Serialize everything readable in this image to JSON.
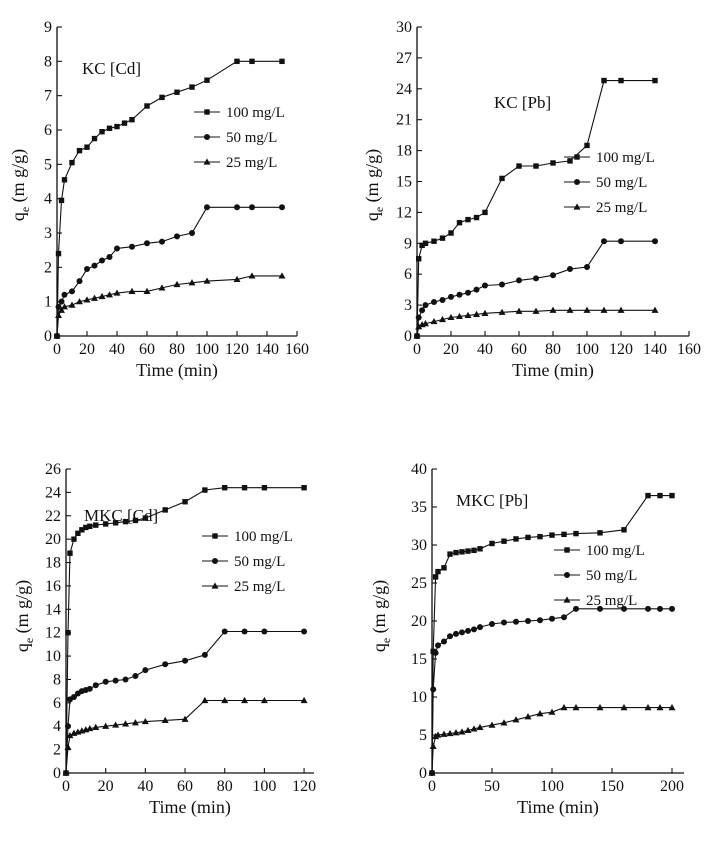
{
  "chart_data": [
    {
      "type": "line",
      "panel": "top-left",
      "title": "KC [Cd]",
      "xlabel": "Time (min)",
      "ylabel": "q_e (m g/g)",
      "ylabel_main": "q",
      "ylabel_sub": "e",
      "ylabel_unit": "(m g/g)",
      "xlim": [
        0,
        160
      ],
      "ylim": [
        0,
        9
      ],
      "xticks": [
        0,
        20,
        40,
        60,
        80,
        100,
        120,
        140,
        160
      ],
      "yticks": [
        0,
        1,
        2,
        3,
        4,
        5,
        6,
        7,
        8,
        9
      ],
      "legend_position": "right-middle",
      "series": [
        {
          "name": "100 mg/L",
          "marker": "square",
          "x": [
            0,
            1,
            3,
            5,
            10,
            15,
            20,
            25,
            30,
            35,
            40,
            45,
            50,
            60,
            70,
            80,
            90,
            100,
            120,
            130,
            150
          ],
          "y": [
            0,
            2.4,
            3.95,
            4.55,
            5.05,
            5.4,
            5.5,
            5.75,
            5.95,
            6.05,
            6.1,
            6.2,
            6.3,
            6.7,
            6.95,
            7.1,
            7.25,
            7.45,
            8.0,
            8.0,
            8.0
          ]
        },
        {
          "name": "50 mg/L",
          "marker": "circle",
          "x": [
            0,
            1,
            3,
            5,
            10,
            15,
            20,
            25,
            30,
            35,
            40,
            50,
            60,
            70,
            80,
            90,
            100,
            120,
            130,
            150
          ],
          "y": [
            0,
            0.85,
            1.0,
            1.2,
            1.3,
            1.6,
            1.95,
            2.05,
            2.2,
            2.3,
            2.55,
            2.6,
            2.7,
            2.75,
            2.9,
            3.0,
            3.75,
            3.75,
            3.75,
            3.75
          ]
        },
        {
          "name": "25 mg/L",
          "marker": "triangle",
          "x": [
            0,
            1,
            3,
            5,
            10,
            15,
            20,
            25,
            30,
            35,
            40,
            50,
            60,
            70,
            80,
            90,
            100,
            120,
            130,
            150
          ],
          "y": [
            0,
            0.6,
            0.75,
            0.85,
            0.9,
            1.0,
            1.05,
            1.1,
            1.15,
            1.2,
            1.25,
            1.3,
            1.3,
            1.4,
            1.5,
            1.55,
            1.6,
            1.65,
            1.75,
            1.75
          ]
        }
      ]
    },
    {
      "type": "line",
      "panel": "top-right",
      "title": "KC [Pb]",
      "xlabel": "Time (min)",
      "ylabel": "q_e (m g/g)",
      "ylabel_main": "q",
      "ylabel_sub": "e",
      "ylabel_unit": "(m g/g)",
      "xlim": [
        0,
        160
      ],
      "ylim": [
        0,
        30
      ],
      "xticks": [
        0,
        20,
        40,
        60,
        80,
        100,
        120,
        140,
        160
      ],
      "yticks": [
        0,
        3,
        6,
        9,
        12,
        15,
        18,
        21,
        24,
        27,
        30
      ],
      "legend_position": "right-middle",
      "series": [
        {
          "name": "100 mg/L",
          "marker": "square",
          "x": [
            0,
            1,
            3,
            5,
            10,
            15,
            20,
            25,
            30,
            35,
            40,
            50,
            60,
            70,
            80,
            90,
            100,
            110,
            120,
            140
          ],
          "y": [
            0,
            7.5,
            8.8,
            9.0,
            9.2,
            9.5,
            10.0,
            11.0,
            11.3,
            11.5,
            12.0,
            15.3,
            16.5,
            16.5,
            16.8,
            17.0,
            18.5,
            24.8,
            24.8,
            24.8
          ]
        },
        {
          "name": "50 mg/L",
          "marker": "circle",
          "x": [
            0,
            1,
            3,
            5,
            10,
            15,
            20,
            25,
            30,
            35,
            40,
            50,
            60,
            70,
            80,
            90,
            100,
            110,
            120,
            140
          ],
          "y": [
            0,
            1.8,
            2.5,
            3.0,
            3.3,
            3.5,
            3.8,
            4.0,
            4.2,
            4.5,
            4.9,
            5.0,
            5.4,
            5.6,
            5.9,
            6.5,
            6.7,
            9.2,
            9.2,
            9.2
          ]
        },
        {
          "name": "25 mg/L",
          "marker": "triangle",
          "x": [
            0,
            1,
            3,
            5,
            10,
            15,
            20,
            25,
            30,
            35,
            40,
            50,
            60,
            70,
            80,
            90,
            100,
            110,
            120,
            140
          ],
          "y": [
            0,
            0.9,
            1.1,
            1.2,
            1.4,
            1.6,
            1.8,
            1.9,
            2.0,
            2.1,
            2.2,
            2.3,
            2.4,
            2.4,
            2.5,
            2.5,
            2.5,
            2.5,
            2.5,
            2.5
          ]
        }
      ]
    },
    {
      "type": "line",
      "panel": "bottom-left",
      "title": "MKC [Cd]",
      "xlabel": "Time (min)",
      "ylabel": "q_e (m g/g)",
      "ylabel_main": "q",
      "ylabel_sub": "e",
      "ylabel_unit": "(m g/g)",
      "xlim": [
        0,
        125
      ],
      "ylim": [
        0,
        26
      ],
      "xticks": [
        0,
        20,
        40,
        60,
        80,
        100,
        120
      ],
      "yticks": [
        0,
        2,
        4,
        6,
        8,
        10,
        12,
        14,
        16,
        18,
        20,
        22,
        24,
        26
      ],
      "legend_position": "right-middle",
      "series": [
        {
          "name": "100 mg/L",
          "marker": "square",
          "x": [
            0,
            1,
            2,
            4,
            6,
            8,
            10,
            12,
            15,
            20,
            25,
            30,
            35,
            40,
            50,
            60,
            70,
            80,
            90,
            100,
            120
          ],
          "y": [
            0,
            12,
            18.8,
            20,
            20.5,
            20.8,
            21.0,
            21.1,
            21.2,
            21.3,
            21.4,
            21.5,
            21.6,
            21.8,
            22.5,
            23.2,
            24.2,
            24.4,
            24.4,
            24.4,
            24.4
          ]
        },
        {
          "name": "50 mg/L",
          "marker": "circle",
          "x": [
            0,
            1,
            2,
            4,
            6,
            8,
            10,
            12,
            15,
            20,
            25,
            30,
            35,
            40,
            50,
            60,
            70,
            80,
            90,
            100,
            120
          ],
          "y": [
            0,
            4,
            6.3,
            6.5,
            6.8,
            7.0,
            7.1,
            7.2,
            7.5,
            7.8,
            7.9,
            8.0,
            8.3,
            8.8,
            9.3,
            9.6,
            10.1,
            12.1,
            12.1,
            12.1,
            12.1
          ]
        },
        {
          "name": "25 mg/L",
          "marker": "triangle",
          "x": [
            0,
            1,
            2,
            4,
            6,
            8,
            10,
            12,
            15,
            20,
            25,
            30,
            35,
            40,
            50,
            60,
            70,
            80,
            90,
            100,
            120
          ],
          "y": [
            0,
            2.2,
            3.2,
            3.4,
            3.5,
            3.6,
            3.7,
            3.8,
            3.9,
            4.0,
            4.1,
            4.2,
            4.3,
            4.4,
            4.5,
            4.6,
            6.2,
            6.2,
            6.2,
            6.2,
            6.2
          ]
        }
      ]
    },
    {
      "type": "line",
      "panel": "bottom-right",
      "title": "MKC [Pb]",
      "xlabel": "Time (min)",
      "ylabel": "q_e (m g/g)",
      "ylabel_main": "q",
      "ylabel_sub": "e",
      "ylabel_unit": "(m g/g)",
      "xlim": [
        0,
        210
      ],
      "ylim": [
        0,
        40
      ],
      "xticks": [
        0,
        50,
        100,
        150,
        200
      ],
      "yticks": [
        0,
        5,
        10,
        15,
        20,
        25,
        30,
        35,
        40
      ],
      "legend_position": "right-middle",
      "series": [
        {
          "name": "100 mg/L",
          "marker": "square",
          "x": [
            0,
            1,
            3,
            5,
            10,
            15,
            20,
            25,
            30,
            35,
            40,
            50,
            60,
            70,
            80,
            90,
            100,
            110,
            120,
            140,
            160,
            180,
            190,
            200
          ],
          "y": [
            0,
            16,
            25.8,
            26.5,
            27.0,
            28.8,
            29.0,
            29.1,
            29.2,
            29.3,
            29.5,
            30.2,
            30.5,
            30.8,
            31.0,
            31.1,
            31.3,
            31.4,
            31.5,
            31.6,
            32.0,
            36.5,
            36.5,
            36.5
          ]
        },
        {
          "name": "50 mg/L",
          "marker": "circle",
          "x": [
            0,
            1,
            3,
            5,
            10,
            15,
            20,
            25,
            30,
            35,
            40,
            50,
            60,
            70,
            80,
            90,
            100,
            110,
            120,
            140,
            160,
            180,
            190,
            200
          ],
          "y": [
            0,
            11,
            15.8,
            16.8,
            17.3,
            18.0,
            18.3,
            18.5,
            18.7,
            18.9,
            19.2,
            19.6,
            19.8,
            19.9,
            20.0,
            20.1,
            20.3,
            20.5,
            21.6,
            21.6,
            21.6,
            21.6,
            21.6,
            21.6
          ]
        },
        {
          "name": "25 mg/L",
          "marker": "triangle",
          "x": [
            0,
            1,
            3,
            5,
            10,
            15,
            20,
            25,
            30,
            35,
            40,
            50,
            60,
            70,
            80,
            90,
            100,
            110,
            120,
            140,
            160,
            180,
            190,
            200
          ],
          "y": [
            0,
            3.5,
            4.8,
            5.0,
            5.1,
            5.2,
            5.3,
            5.4,
            5.6,
            5.8,
            6.0,
            6.3,
            6.6,
            7.0,
            7.4,
            7.8,
            8.0,
            8.6,
            8.6,
            8.6,
            8.6,
            8.6,
            8.6,
            8.6
          ]
        }
      ]
    }
  ]
}
